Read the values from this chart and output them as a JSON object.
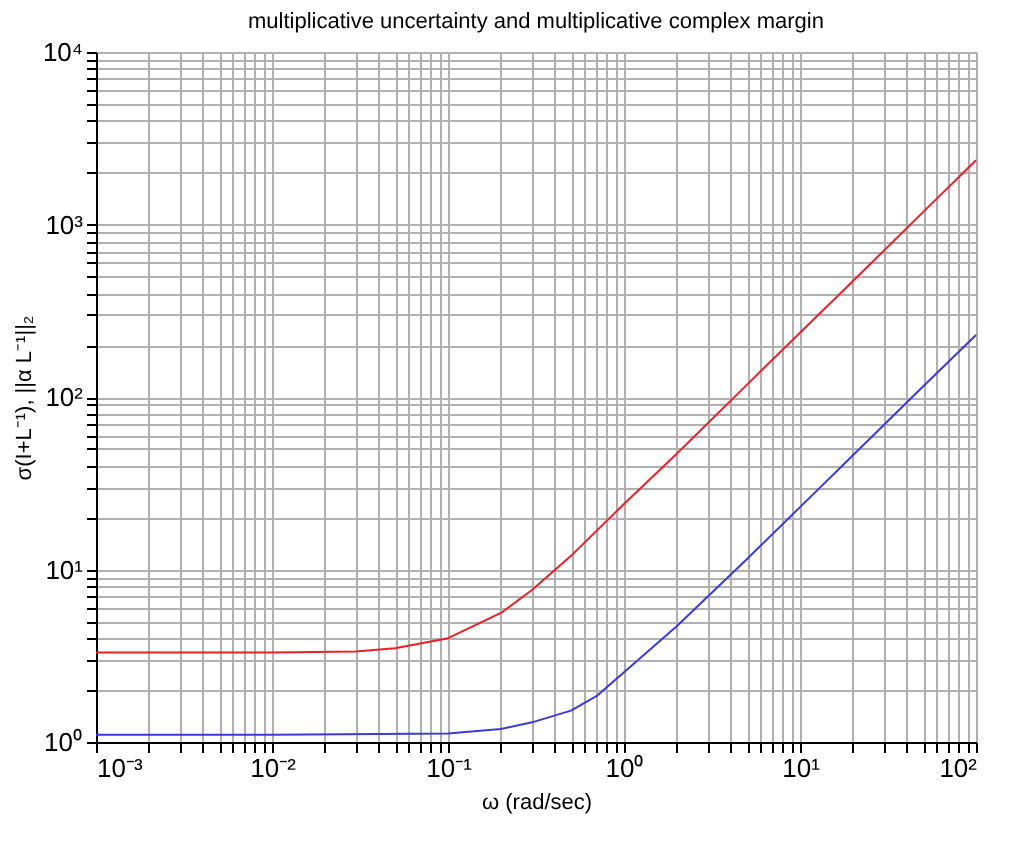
{
  "chart_data": {
    "type": "line",
    "title": "multiplicative uncertainty and multiplicative complex margin",
    "xlabel": "ω (rad/sec)",
    "ylabel": "σ(I+L⁻¹), ||α L⁻¹||₂",
    "log": "xy",
    "grid": true,
    "line_style": "solid",
    "marker": "none",
    "xlim": [
      0.001,
      100
    ],
    "ylim": [
      1,
      10000
    ],
    "xticks": [
      {
        "value": 0.001,
        "label": "10⁻³"
      },
      {
        "value": 0.002,
        "label": null
      },
      {
        "value": 0.003,
        "label": null
      },
      {
        "value": 0.004,
        "label": null
      },
      {
        "value": 0.005,
        "label": null
      },
      {
        "value": 0.006,
        "label": null
      },
      {
        "value": 0.007,
        "label": null
      },
      {
        "value": 0.008,
        "label": null
      },
      {
        "value": 0.009,
        "label": null
      },
      {
        "value": 0.01,
        "label": "10⁻²"
      },
      {
        "value": 0.02,
        "label": null
      },
      {
        "value": 0.03,
        "label": null
      },
      {
        "value": 0.04,
        "label": null
      },
      {
        "value": 0.05,
        "label": null
      },
      {
        "value": 0.06,
        "label": null
      },
      {
        "value": 0.07,
        "label": null
      },
      {
        "value": 0.08,
        "label": null
      },
      {
        "value": 0.09,
        "label": null
      },
      {
        "value": 0.1,
        "label": "10⁻¹"
      },
      {
        "value": 0.2,
        "label": null
      },
      {
        "value": 0.3,
        "label": null
      },
      {
        "value": 0.4,
        "label": null
      },
      {
        "value": 0.5,
        "label": null
      },
      {
        "value": 0.6,
        "label": null
      },
      {
        "value": 0.7,
        "label": null
      },
      {
        "value": 0.8,
        "label": null
      },
      {
        "value": 0.9,
        "label": null
      },
      {
        "value": 1,
        "label": "10⁰"
      },
      {
        "value": 2,
        "label": null
      },
      {
        "value": 3,
        "label": null
      },
      {
        "value": 4,
        "label": null
      },
      {
        "value": 5,
        "label": null
      },
      {
        "value": 6,
        "label": null
      },
      {
        "value": 7,
        "label": null
      },
      {
        "value": 8,
        "label": null
      },
      {
        "value": 9,
        "label": null
      },
      {
        "value": 10,
        "label": "10¹"
      },
      {
        "value": 20,
        "label": null
      },
      {
        "value": 30,
        "label": null
      },
      {
        "value": 40,
        "label": null
      },
      {
        "value": 50,
        "label": null
      },
      {
        "value": 60,
        "label": null
      },
      {
        "value": 70,
        "label": null
      },
      {
        "value": 80,
        "label": null
      },
      {
        "value": 90,
        "label": null
      },
      {
        "value": 100,
        "label": "10²"
      }
    ],
    "yticks": [
      {
        "value": 1,
        "label": "10⁰"
      },
      {
        "value": 2,
        "label": null
      },
      {
        "value": 3,
        "label": null
      },
      {
        "value": 4,
        "label": null
      },
      {
        "value": 5,
        "label": null
      },
      {
        "value": 6,
        "label": null
      },
      {
        "value": 7,
        "label": null
      },
      {
        "value": 8,
        "label": null
      },
      {
        "value": 9,
        "label": null
      },
      {
        "value": 10,
        "label": "10¹"
      },
      {
        "value": 20,
        "label": null
      },
      {
        "value": 30,
        "label": null
      },
      {
        "value": 40,
        "label": null
      },
      {
        "value": 50,
        "label": null
      },
      {
        "value": 60,
        "label": null
      },
      {
        "value": 70,
        "label": null
      },
      {
        "value": 80,
        "label": null
      },
      {
        "value": 90,
        "label": null
      },
      {
        "value": 100,
        "label": "10²"
      },
      {
        "value": 200,
        "label": null
      },
      {
        "value": 300,
        "label": null
      },
      {
        "value": 400,
        "label": null
      },
      {
        "value": 500,
        "label": null
      },
      {
        "value": 600,
        "label": null
      },
      {
        "value": 700,
        "label": null
      },
      {
        "value": 800,
        "label": null
      },
      {
        "value": 900,
        "label": null
      },
      {
        "value": 1000,
        "label": "10³"
      },
      {
        "value": 2000,
        "label": null
      },
      {
        "value": 3000,
        "label": null
      },
      {
        "value": 4000,
        "label": null
      },
      {
        "value": 5000,
        "label": null
      },
      {
        "value": 6000,
        "label": null
      },
      {
        "value": 7000,
        "label": null
      },
      {
        "value": 8000,
        "label": null
      },
      {
        "value": 9000,
        "label": null
      },
      {
        "value": 10000,
        "label": "10⁴"
      }
    ],
    "series": [
      {
        "color": "#e8202a",
        "x": [
          0.001,
          0.01,
          0.03,
          0.05,
          0.1,
          0.2,
          0.3,
          0.5,
          1,
          2,
          5,
          10,
          20,
          50,
          100
        ],
        "values": [
          3.3,
          3.3,
          3.35,
          3.5,
          4.0,
          5.6,
          7.6,
          12,
          24,
          47,
          118,
          236,
          470,
          1180,
          2360
        ]
      },
      {
        "color": "#3a3ad8",
        "x": [
          0.001,
          0.01,
          0.1,
          0.2,
          0.3,
          0.5,
          0.7,
          1,
          2,
          5,
          10,
          20,
          50,
          100
        ],
        "values": [
          1.1,
          1.1,
          1.12,
          1.19,
          1.3,
          1.52,
          1.85,
          2.54,
          4.7,
          11.5,
          23,
          46,
          115,
          229
        ]
      }
    ]
  }
}
